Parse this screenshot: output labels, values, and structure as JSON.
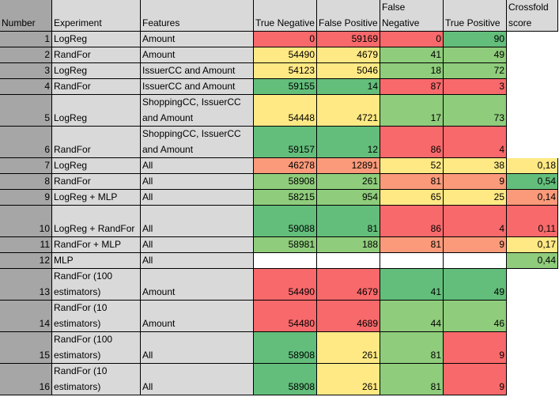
{
  "colors": {
    "gray_dark": "#a6a6a6",
    "gray_light": "#d9d9d9",
    "green": "#63be7b",
    "light_green": "#8fcc7c",
    "yellow": "#ffe984",
    "orange": "#fb9a7a",
    "red": "#f8696b",
    "white": "#ffffff"
  },
  "headers": {
    "number": "Number",
    "experiment": "Experiment",
    "features": "Features",
    "tn": "True Negative",
    "fp": "False Positive",
    "fn": "False Negative",
    "tp": "True Positive",
    "cf": "Crossfold score"
  },
  "rows": [
    {
      "number": "1",
      "experiment": "LogReg",
      "features": "Amount",
      "tn": "0",
      "fp": "59169",
      "fn": "0",
      "tp": "90",
      "cf": "",
      "colors": [
        "red",
        "red",
        "red",
        "green",
        null
      ]
    },
    {
      "number": "2",
      "experiment": "RandFor",
      "features": "Amount",
      "tn": "54490",
      "fp": "4679",
      "fn": "41",
      "tp": "49",
      "cf": "",
      "colors": [
        "yellow",
        "yellow",
        "light_green",
        "light_green",
        null
      ]
    },
    {
      "number": "3",
      "experiment": "LogReg",
      "features": "IssuerCC and Amount",
      "tn": "54123",
      "fp": "5046",
      "fn": "18",
      "tp": "72",
      "cf": "",
      "colors": [
        "yellow",
        "yellow",
        "light_green",
        "light_green",
        null
      ]
    },
    {
      "number": "4",
      "experiment": "RandFor",
      "features": "IssuerCC and Amount",
      "tn": "59155",
      "fp": "14",
      "fn": "87",
      "tp": "3",
      "cf": "",
      "colors": [
        "green",
        "green",
        "red",
        "red",
        null
      ]
    },
    {
      "number": "5",
      "experiment": "LogReg",
      "features": "ShoppingCC, IssuerCC and Amount",
      "tn": "54448",
      "fp": "4721",
      "fn": "17",
      "tp": "73",
      "cf": "",
      "colors": [
        "yellow",
        "yellow",
        "light_green",
        "light_green",
        null
      ]
    },
    {
      "number": "6",
      "experiment": "RandFor",
      "features": "ShoppingCC, IssuerCC and Amount",
      "tn": "59157",
      "fp": "12",
      "fn": "86",
      "tp": "4",
      "cf": "",
      "colors": [
        "green",
        "green",
        "red",
        "red",
        null
      ]
    },
    {
      "number": "7",
      "experiment": "LogReg",
      "features": "All",
      "tn": "46278",
      "fp": "12891",
      "fn": "52",
      "tp": "38",
      "cf": "0,18",
      "colors": [
        "orange",
        "orange",
        "yellow",
        "yellow",
        "yellow"
      ]
    },
    {
      "number": "8",
      "experiment": "RandFor",
      "features": "All",
      "tn": "58908",
      "fp": "261",
      "fn": "81",
      "tp": "9",
      "cf": "0,54",
      "colors": [
        "light_green",
        "light_green",
        "orange",
        "orange",
        "green"
      ]
    },
    {
      "number": "9",
      "experiment": "LogReg + MLP",
      "features": "All",
      "tn": "58215",
      "fp": "954",
      "fn": "65",
      "tp": "25",
      "cf": "0,14",
      "colors": [
        "light_green",
        "light_green",
        "yellow",
        "yellow",
        "orange"
      ]
    },
    {
      "number": "10",
      "experiment": "LogReg + RandFor",
      "features": "All",
      "tn": "59088",
      "fp": "81",
      "fn": "86",
      "tp": "4",
      "cf": "0,11",
      "colors": [
        "green",
        "green",
        "red",
        "red",
        "red"
      ]
    },
    {
      "number": "11",
      "experiment": "RandFor + MLP",
      "features": "All",
      "tn": "58981",
      "fp": "188",
      "fn": "81",
      "tp": "9",
      "cf": "0,17",
      "colors": [
        "light_green",
        "light_green",
        "orange",
        "orange",
        "yellow"
      ]
    },
    {
      "number": "12",
      "experiment": "MLP",
      "features": "All",
      "tn": "",
      "fp": "",
      "fn": "",
      "tp": "",
      "cf": "0,44",
      "colors": [
        "white",
        "white",
        "white",
        "white",
        "light_green"
      ]
    },
    {
      "number": "13",
      "experiment": "RandFor (100 estimators)",
      "features": "Amount",
      "tn": "54490",
      "fp": "4679",
      "fn": "41",
      "tp": "49",
      "cf": "",
      "colors": [
        "red",
        "red",
        "green",
        "green",
        null
      ]
    },
    {
      "number": "14",
      "experiment": "RandFor (10 estimators)",
      "features": "Amount",
      "tn": "54480",
      "fp": "4689",
      "fn": "44",
      "tp": "46",
      "cf": "",
      "colors": [
        "red",
        "red",
        "light_green",
        "light_green",
        null
      ]
    },
    {
      "number": "15",
      "experiment": "RandFor (100 estimators)",
      "features": "All",
      "tn": "58908",
      "fp": "261",
      "fn": "81",
      "tp": "9",
      "cf": "",
      "colors": [
        "green",
        "yellow",
        "light_green",
        "red",
        null
      ]
    },
    {
      "number": "16",
      "experiment": "RandFor (10 estimators)",
      "features": "All",
      "tn": "58908",
      "fp": "261",
      "fn": "81",
      "tp": "9",
      "cf": "",
      "colors": [
        "green",
        "yellow",
        "light_green",
        "red",
        null
      ]
    }
  ]
}
